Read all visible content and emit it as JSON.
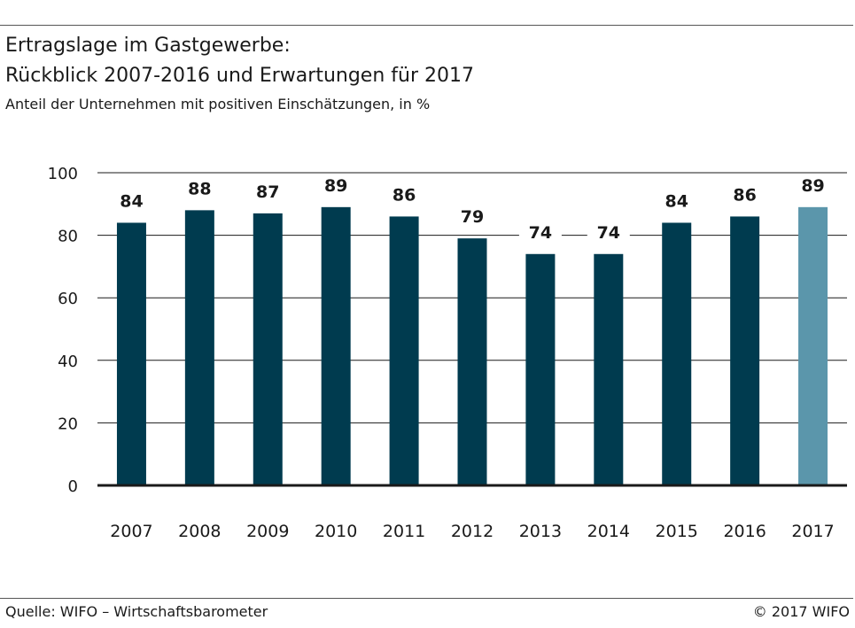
{
  "header": {
    "title_line1": "Ertragslage im Gastgewerbe:",
    "title_line2": "Rückblick 2007-2016 und Erwartungen für 2017",
    "subtitle": "Anteil der Unternehmen mit positiven Einschätzungen, in %"
  },
  "footer": {
    "source": "Quelle: WIFO – Wirtschaftsbarometer",
    "copyright": "© 2017 WIFO"
  },
  "colors": {
    "bar_main": "#003b4f",
    "bar_highlight": "#5b96ab",
    "gridline": "#1a1a1a",
    "text": "#1a1a1a"
  },
  "chart_data": {
    "type": "bar",
    "title": "Ertragslage im Gastgewerbe: Rückblick 2007-2016 und Erwartungen für 2017",
    "subtitle": "Anteil der Unternehmen mit positiven Einschätzungen, in %",
    "xlabel": "",
    "ylabel": "",
    "categories": [
      "2007",
      "2008",
      "2009",
      "2010",
      "2011",
      "2012",
      "2013",
      "2014",
      "2015",
      "2016",
      "2017"
    ],
    "values": [
      84,
      88,
      87,
      89,
      86,
      79,
      74,
      74,
      84,
      86,
      89
    ],
    "highlight_index": 10,
    "ylim": [
      0,
      100
    ],
    "yticks": [
      0,
      20,
      40,
      60,
      80,
      100
    ],
    "grid": true
  }
}
